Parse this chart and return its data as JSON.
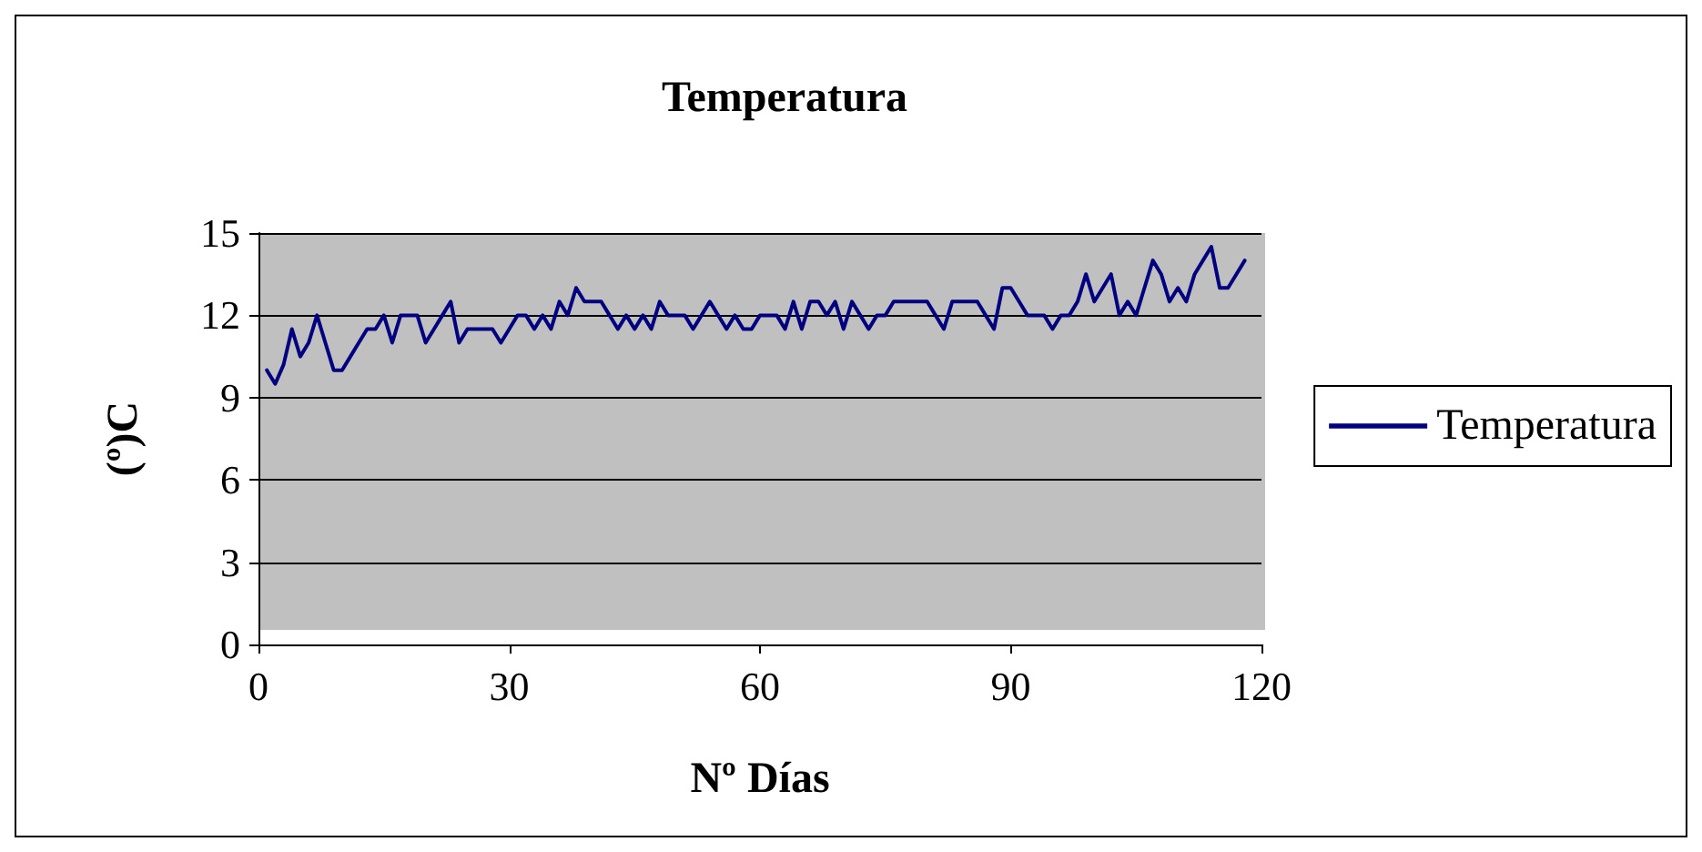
{
  "chart_data": {
    "type": "line",
    "title": "Temperatura",
    "xlabel": "Nº Días",
    "ylabel": "(º)C",
    "x": [
      1,
      2,
      3,
      4,
      5,
      6,
      7,
      8,
      9,
      10,
      11,
      12,
      13,
      14,
      15,
      16,
      17,
      18,
      19,
      20,
      21,
      22,
      23,
      24,
      25,
      26,
      27,
      28,
      29,
      30,
      31,
      32,
      33,
      34,
      35,
      36,
      37,
      38,
      39,
      40,
      41,
      42,
      43,
      44,
      45,
      46,
      47,
      48,
      49,
      50,
      51,
      52,
      53,
      54,
      55,
      56,
      57,
      58,
      59,
      60,
      61,
      62,
      63,
      64,
      65,
      66,
      67,
      68,
      69,
      70,
      71,
      72,
      73,
      74,
      75,
      76,
      77,
      78,
      79,
      80,
      81,
      82,
      83,
      84,
      85,
      86,
      87,
      88,
      89,
      90,
      91,
      92,
      93,
      94,
      95,
      96,
      97,
      98,
      99,
      100,
      101,
      102,
      103,
      104,
      105,
      106,
      107,
      108,
      109,
      110,
      111,
      112,
      113,
      114,
      115,
      116,
      117,
      118
    ],
    "series": [
      {
        "name": "Temperatura",
        "color": "#000080",
        "values": [
          10,
          9.5,
          10.2,
          11.5,
          10.5,
          11,
          12,
          11,
          10,
          10,
          10.5,
          11,
          11.5,
          11.5,
          12,
          11,
          12,
          12,
          12,
          11,
          11.5,
          12,
          12.5,
          11,
          11.5,
          11.5,
          11.5,
          11.5,
          11,
          11.5,
          12,
          12,
          11.5,
          12,
          11.5,
          12.5,
          12,
          13,
          12.5,
          12.5,
          12.5,
          12,
          11.5,
          12,
          11.5,
          12,
          11.5,
          12.5,
          12,
          12,
          12,
          11.5,
          12,
          12.5,
          12,
          11.5,
          12,
          11.5,
          11.5,
          12,
          12,
          12,
          11.5,
          12.5,
          11.5,
          12.5,
          12.5,
          12,
          12.5,
          11.5,
          12.5,
          12,
          11.5,
          12,
          12,
          12.5,
          12.5,
          12.5,
          12.5,
          12.5,
          12,
          11.5,
          12.5,
          12.5,
          12.5,
          12.5,
          12,
          11.5,
          13,
          13,
          12.5,
          12,
          12,
          12,
          11.5,
          12,
          12,
          12.5,
          13.5,
          12.5,
          13,
          13.5,
          12,
          12.5,
          12,
          13,
          14,
          13.5,
          12.5,
          13,
          12.5,
          13.5,
          14,
          14.5,
          13,
          13,
          13.5,
          14
        ]
      }
    ],
    "xlim": [
      0,
      120
    ],
    "xticks": [
      0,
      30,
      60,
      90,
      120
    ],
    "ylim": [
      0,
      15
    ],
    "yticks": [
      0,
      3,
      6,
      9,
      12,
      15
    ],
    "grid": "y",
    "legend": "right",
    "marker": "none",
    "line_style": "solid"
  }
}
